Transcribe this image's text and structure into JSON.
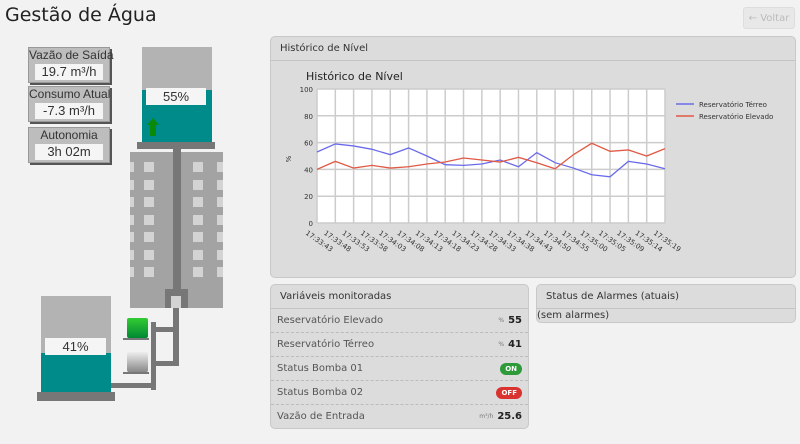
{
  "header": {
    "title": "Gestão de Água",
    "back_label": "← Voltar"
  },
  "metrics": [
    {
      "label": "Vazão de Saída",
      "value": "19.7 m³/h"
    },
    {
      "label": "Consumo Atual",
      "value": "-7.3 m³/h"
    },
    {
      "label": "Autonomia",
      "value": "3h 02m"
    }
  ],
  "tanks": {
    "upper": {
      "level_percent": 55,
      "label": "55%",
      "arrow": "arrow-up-icon",
      "arrow_color": "#0a8a0a"
    },
    "lower": {
      "level_percent": 41,
      "label": "41%"
    }
  },
  "colors": {
    "water": "#008b8b",
    "pump_on": "#22b322",
    "pump_off": "#c8c8c8"
  },
  "pumps": [
    {
      "status": "on"
    },
    {
      "status": "off"
    }
  ],
  "chart_panel": {
    "header": "Histórico de Nível"
  },
  "chart_data": {
    "type": "line",
    "title": "Histórico de Nível",
    "ylabel": "%",
    "ylim": [
      0,
      100
    ],
    "yticks": [
      0,
      20,
      40,
      60,
      80,
      100
    ],
    "grid": true,
    "legend": "top-right",
    "categories": [
      "17:33:43",
      "17:33:48",
      "17:33:53",
      "17:33:58",
      "17:34:03",
      "17:34:08",
      "17:34:13",
      "17:34:18",
      "17:34:23",
      "17:34:28",
      "17:34:33",
      "17:34:38",
      "17:34:43",
      "17:34:50",
      "17:34:55",
      "17:35:00",
      "17:35:05",
      "17:35:09",
      "17:35:14",
      "17:35:19"
    ],
    "series": [
      {
        "name": "Reservatório Térreo",
        "color": "#6b6bea",
        "values": [
          53,
          59,
          57.5,
          55,
          51,
          56,
          50,
          43.5,
          43,
          44,
          47,
          42,
          52.5,
          45,
          41,
          36,
          34.5,
          46,
          44,
          40.5
        ]
      },
      {
        "name": "Reservatório Elevado",
        "color": "#e05a45",
        "values": [
          40,
          46,
          41,
          43,
          41,
          42,
          44,
          45.5,
          48.5,
          47,
          45.5,
          49,
          45,
          40.5,
          51,
          59.5,
          53.5,
          54.5,
          50,
          55.5
        ]
      }
    ]
  },
  "variables": {
    "header": "Variáveis monitoradas",
    "rows": [
      {
        "label": "Reservatório Elevado",
        "unit": "%",
        "value": "55"
      },
      {
        "label": "Reservatório Térreo",
        "unit": "%",
        "value": "41"
      },
      {
        "label": "Status Bomba 01",
        "badge": "ON",
        "badge_color": "#2e9a3a"
      },
      {
        "label": "Status Bomba 02",
        "badge": "OFF",
        "badge_color": "#d9322f"
      },
      {
        "label": "Vazão de Entrada",
        "unit": "m³/h",
        "value": "25.6"
      }
    ]
  },
  "alarms": {
    "header": "Status de Alarmes (atuais)",
    "empty": "(sem alarmes)"
  }
}
